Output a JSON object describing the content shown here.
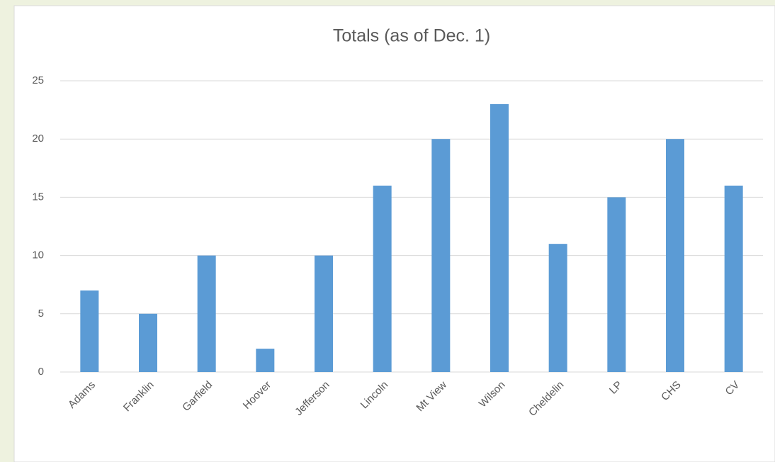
{
  "chart_data": {
    "type": "bar",
    "title": "Totals (as of Dec. 1)",
    "categories": [
      "Adams",
      "Franklin",
      "Garfield",
      "Hoover",
      "Jefferson",
      "Lincoln",
      "Mt View",
      "Wilson",
      "Cheldelin",
      "LP",
      "CHS",
      "CV"
    ],
    "values": [
      7,
      5,
      10,
      2,
      10,
      16,
      20,
      23,
      11,
      15,
      20,
      16
    ],
    "color": "#5b9bd5",
    "ylim": [
      0,
      25
    ],
    "yticks": [
      0,
      5,
      10,
      15,
      20,
      25
    ],
    "grid": true
  }
}
